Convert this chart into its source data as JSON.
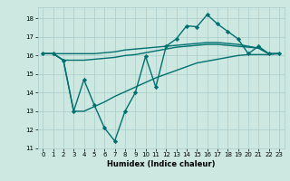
{
  "title": "",
  "xlabel": "Humidex (Indice chaleur)",
  "xlim": [
    -0.5,
    23.5
  ],
  "ylim": [
    11,
    18.6
  ],
  "yticks": [
    11,
    12,
    13,
    14,
    15,
    16,
    17,
    18
  ],
  "xticks": [
    0,
    1,
    2,
    3,
    4,
    5,
    6,
    7,
    8,
    9,
    10,
    11,
    12,
    13,
    14,
    15,
    16,
    17,
    18,
    19,
    20,
    21,
    22,
    23
  ],
  "bg_color": "#cce8e0",
  "grid_color": "#aacccc",
  "line_color": "#007070",
  "series": [
    {
      "x": [
        0,
        1,
        2,
        3,
        4,
        5,
        6,
        7,
        8,
        9,
        10,
        11,
        12,
        13,
        14,
        15,
        16,
        17,
        18,
        19,
        20,
        21,
        22,
        23
      ],
      "y": [
        16.1,
        16.1,
        16.1,
        16.1,
        16.1,
        16.1,
        16.15,
        16.2,
        16.3,
        16.35,
        16.4,
        16.45,
        16.5,
        16.55,
        16.6,
        16.65,
        16.7,
        16.7,
        16.65,
        16.6,
        16.5,
        16.4,
        16.1,
        16.1
      ],
      "marker": null,
      "linewidth": 1.0
    },
    {
      "x": [
        0,
        1,
        2,
        3,
        4,
        5,
        6,
        7,
        8,
        9,
        10,
        11,
        12,
        13,
        14,
        15,
        16,
        17,
        18,
        19,
        20,
        21,
        22,
        23
      ],
      "y": [
        16.1,
        16.1,
        15.75,
        15.75,
        15.75,
        15.8,
        15.85,
        15.9,
        16.0,
        16.05,
        16.15,
        16.25,
        16.35,
        16.45,
        16.5,
        16.55,
        16.6,
        16.6,
        16.55,
        16.5,
        16.45,
        16.4,
        16.1,
        16.1
      ],
      "marker": null,
      "linewidth": 1.0
    },
    {
      "x": [
        0,
        1,
        2,
        3,
        4,
        5,
        6,
        7,
        8,
        9,
        10,
        11,
        12,
        13,
        14,
        15,
        16,
        17,
        18,
        19,
        20,
        21,
        22,
        23
      ],
      "y": [
        16.1,
        16.1,
        15.75,
        13.0,
        14.7,
        13.35,
        12.1,
        11.4,
        13.0,
        14.0,
        15.95,
        14.3,
        16.5,
        16.9,
        17.6,
        17.55,
        18.2,
        17.7,
        17.3,
        16.9,
        16.1,
        16.5,
        16.1,
        16.1
      ],
      "marker": "D",
      "markersize": 2.2,
      "linewidth": 1.0
    },
    {
      "x": [
        0,
        1,
        2,
        3,
        4,
        5,
        6,
        7,
        8,
        9,
        10,
        11,
        12,
        13,
        14,
        15,
        16,
        17,
        18,
        19,
        20,
        21,
        22,
        23
      ],
      "y": [
        16.1,
        16.1,
        15.75,
        13.0,
        13.0,
        13.25,
        13.5,
        13.8,
        14.05,
        14.3,
        14.55,
        14.8,
        15.0,
        15.2,
        15.4,
        15.6,
        15.7,
        15.8,
        15.9,
        16.0,
        16.05,
        16.05,
        16.05,
        16.1
      ],
      "marker": null,
      "linewidth": 1.0
    }
  ]
}
